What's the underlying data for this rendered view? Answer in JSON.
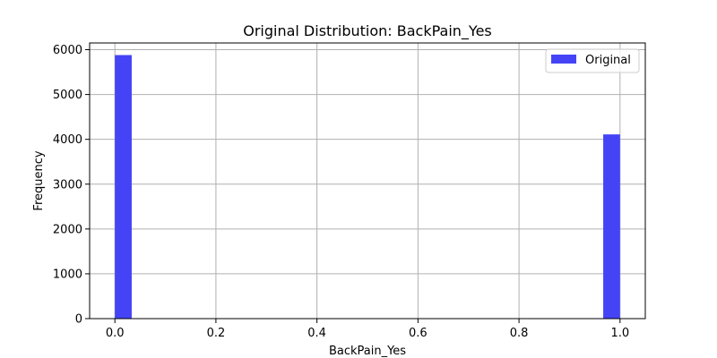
{
  "chart_data": {
    "type": "bar",
    "title": "Original Distribution: BackPain_Yes",
    "xlabel": "BackPain_Yes",
    "ylabel": "Frequency",
    "xlim": [
      -0.05,
      1.05
    ],
    "ylim": [
      0,
      6150
    ],
    "xticks": [
      "0.0",
      "0.2",
      "0.4",
      "0.6",
      "0.8",
      "1.0"
    ],
    "xtick_values": [
      0,
      0.2,
      0.4,
      0.6,
      0.8,
      1.0
    ],
    "yticks": [
      "0",
      "1000",
      "2000",
      "3000",
      "4000",
      "5000",
      "6000"
    ],
    "ytick_values": [
      0,
      1000,
      2000,
      3000,
      4000,
      5000,
      6000
    ],
    "grid": true,
    "legend": {
      "position": "top-right",
      "entries": [
        "Original"
      ]
    },
    "series": [
      {
        "name": "Original",
        "color": "#4444f6",
        "bins": [
          {
            "x0": 0.0,
            "x1": 0.0333,
            "value": 5880
          },
          {
            "x0": 0.9667,
            "x1": 1.0,
            "value": 4110
          }
        ]
      }
    ]
  }
}
